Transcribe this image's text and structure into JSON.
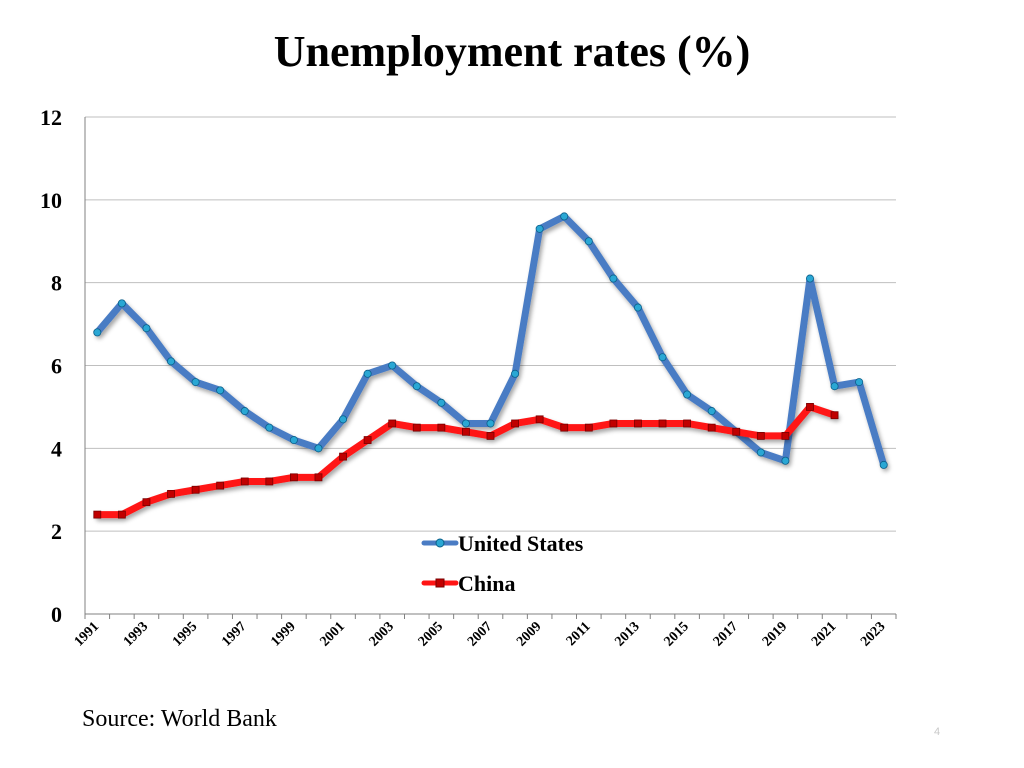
{
  "page": {
    "source": "Source: World Bank",
    "page_number": "4"
  },
  "colors": {
    "us": "#4a7cc4",
    "us_marker": "#2aa7d4",
    "china": "#ff1414",
    "china_marker": "#c00000",
    "grid": "#bfbfbf"
  },
  "chart_data": {
    "type": "line",
    "title": "Unemployment rates (%)",
    "xlabel": "",
    "ylabel": "",
    "ylim": [
      0,
      12
    ],
    "yticks": [
      "0",
      "2",
      "4",
      "6",
      "8",
      "10",
      "12"
    ],
    "x": [
      1991,
      1992,
      1993,
      1994,
      1995,
      1996,
      1997,
      1998,
      1999,
      2000,
      2001,
      2002,
      2003,
      2004,
      2005,
      2006,
      2007,
      2008,
      2009,
      2010,
      2011,
      2012,
      2013,
      2014,
      2015,
      2016,
      2017,
      2018,
      2019,
      2020,
      2021,
      2022,
      2023
    ],
    "xtick_labels": [
      "1991",
      "1993",
      "1995",
      "1997",
      "1999",
      "2001",
      "2003",
      "2005",
      "2007",
      "2009",
      "2011",
      "2013",
      "2015",
      "2017",
      "2019",
      "2021",
      "2023"
    ],
    "grid": true,
    "legend_position": "bottom-center",
    "series": [
      {
        "name": "United States",
        "values": [
          6.8,
          7.5,
          6.9,
          6.1,
          5.6,
          5.4,
          4.9,
          4.5,
          4.2,
          4.0,
          4.7,
          5.8,
          6.0,
          5.5,
          5.1,
          4.6,
          4.6,
          5.8,
          9.3,
          9.6,
          9.0,
          8.1,
          7.4,
          6.2,
          5.3,
          4.9,
          4.4,
          3.9,
          3.7,
          8.1,
          5.5,
          5.6,
          3.6
        ]
      },
      {
        "name": "China",
        "values": [
          2.4,
          2.4,
          2.7,
          2.9,
          3.0,
          3.1,
          3.2,
          3.2,
          3.3,
          3.3,
          3.8,
          4.2,
          4.6,
          4.5,
          4.5,
          4.4,
          4.3,
          4.6,
          4.7,
          4.5,
          4.5,
          4.6,
          4.6,
          4.6,
          4.6,
          4.5,
          4.4,
          4.3,
          4.3,
          5.0,
          4.8,
          null,
          null
        ]
      }
    ]
  }
}
